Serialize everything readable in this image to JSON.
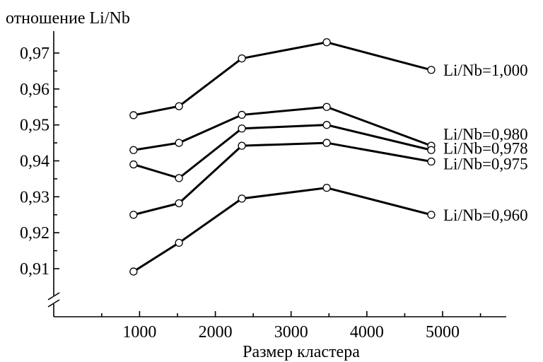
{
  "chart_data": {
    "type": "line",
    "title": "",
    "xlabel": "Размер кластера",
    "ylabel": "отношение Li/Nb",
    "xlim": [
      500,
      5700
    ],
    "ylim": [
      0.9,
      0.975
    ],
    "x_ticks": [
      1000,
      2000,
      3000,
      4000,
      5000
    ],
    "x_tick_labels": [
      "1000",
      "2000",
      "3000",
      "4000",
      "5000"
    ],
    "y_ticks": [
      0.91,
      0.92,
      0.93,
      0.94,
      0.95,
      0.96,
      0.97
    ],
    "y_tick_labels": [
      "0,91",
      "0,92",
      "0,93",
      "0,94",
      "0,95",
      "0,96",
      "0,97"
    ],
    "axis_break": true,
    "grid": false,
    "legend": "none",
    "x": [
      920,
      1520,
      2350,
      3470,
      4850
    ],
    "series": [
      {
        "name": "Li/Nb=1,000",
        "values": [
          0.9527,
          0.9552,
          0.9685,
          0.973,
          0.9653
        ]
      },
      {
        "name": "Li/Nb=0,980",
        "values": [
          0.943,
          0.945,
          0.9528,
          0.955,
          0.9442
        ]
      },
      {
        "name": "Li/Nb=0,978",
        "values": [
          0.939,
          0.9352,
          0.949,
          0.95,
          0.943
        ]
      },
      {
        "name": "Li/Nb=0,975",
        "values": [
          0.925,
          0.9282,
          0.9442,
          0.945,
          0.9398
        ]
      },
      {
        "name": "Li/Nb=0,960",
        "values": [
          0.9092,
          0.9172,
          0.9295,
          0.9325,
          0.925
        ]
      }
    ],
    "label_y_values": [
      0.9653,
      0.9475,
      0.9435,
      0.9392,
      0.925
    ]
  },
  "colors": {
    "line": "#000000",
    "marker_fill": "#ffffff",
    "background": "#ffffff"
  }
}
